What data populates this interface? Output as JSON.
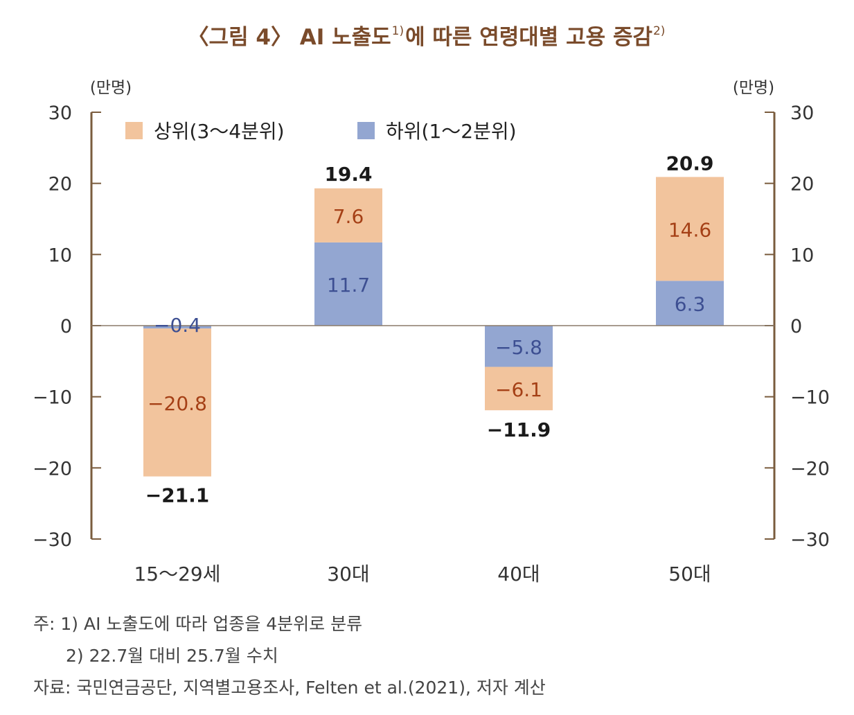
{
  "title": {
    "prefix": "〈그림 4〉 AI 노출도",
    "sup1": "1)",
    "middle": "에 따른 연령대별 고용 증감",
    "sup2": "2)"
  },
  "colors": {
    "upper": "#f2c49d",
    "lower": "#93a6d1",
    "axis": "#7a5c3e",
    "upper_label": "#a54016",
    "lower_label": "#3d4f92",
    "total_label": "#1a1a1a",
    "tick_label": "#333333"
  },
  "chart_data": {
    "type": "bar",
    "stacked": true,
    "categories": [
      "15～29세",
      "30대",
      "40대",
      "50대"
    ],
    "series": [
      {
        "name": "상위(3～4분위)",
        "values": [
          -20.8,
          7.6,
          -6.1,
          14.6
        ],
        "labels": [
          "−20.8",
          "7.6",
          "−6.1",
          "14.6"
        ]
      },
      {
        "name": "하위(1～2분위)",
        "values": [
          -0.4,
          11.7,
          -5.8,
          6.3
        ],
        "labels": [
          "−0.4",
          "11.7",
          "−5.8",
          "6.3"
        ]
      }
    ],
    "totals": [
      -21.1,
      19.4,
      -11.9,
      20.9
    ],
    "total_labels": [
      "−21.1",
      "19.4",
      "−11.9",
      "20.9"
    ],
    "ylim": [
      -30,
      30
    ],
    "yticks": [
      30,
      20,
      10,
      0,
      -10,
      -20,
      -30
    ],
    "ytick_labels": [
      "30",
      "20",
      "10",
      "0",
      "−10",
      "−20",
      "−30"
    ],
    "ylabel_left": "(만명)",
    "ylabel_right": "(만명)",
    "legend_position": "top-left"
  },
  "notes": [
    "주: 1) AI 노출도에 따라 업종을 4분위로 분류",
    "2) 22.7월 대비 25.7월 수치",
    "자료: 국민연금공단, 지역별고용조사, Felten et al.(2021), 저자 계산"
  ]
}
